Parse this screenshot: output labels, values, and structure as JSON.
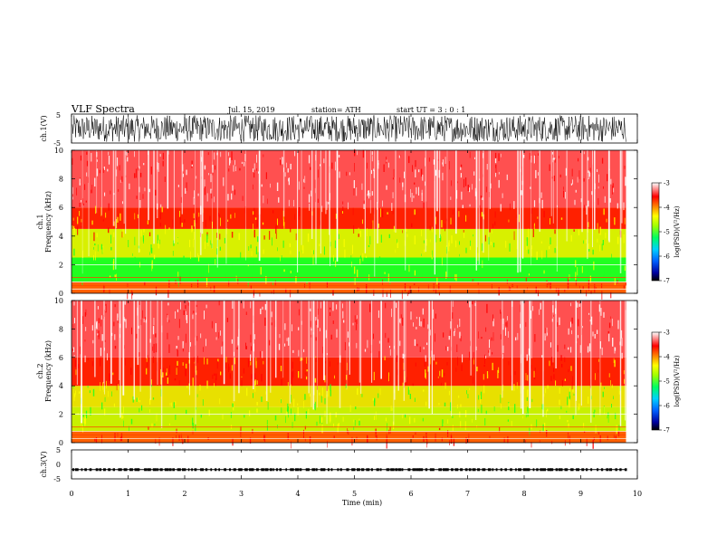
{
  "header": {
    "title": "VLF  Spectra",
    "date": "Jul.  15, 2019",
    "station": "station= ATH",
    "start": "start  UT  =    3  : 0   : 1"
  },
  "chart_data": [
    {
      "type": "line",
      "id": "ch1-waveform",
      "ylabel": "ch.1(V)",
      "ylim": [
        -5,
        5
      ],
      "yticks": [
        "5",
        "-5"
      ],
      "xlim": [
        0,
        10
      ],
      "color": "#000000",
      "note": "dense waveform roughly spanning -4.5 to +4.5 V"
    },
    {
      "type": "heatmap",
      "id": "ch1-spectrogram",
      "ylabel_line1": "ch.1",
      "ylabel_line2": "Frequency  (kHz)",
      "ylim": [
        0,
        10
      ],
      "yticks": [
        "0",
        "2",
        "4",
        "6",
        "8",
        "10"
      ],
      "xlim": [
        0,
        9.8
      ],
      "colorbar": {
        "label": "log(PSD)(V²/Hz)",
        "range": [
          -7,
          -3
        ],
        "ticks": [
          "-3",
          "-4",
          "-5",
          "-6",
          "-7"
        ],
        "colors": [
          "#000000",
          "#0000d0",
          "#00c0ff",
          "#00ff40",
          "#ffff00",
          "#ff0000",
          "#ffffff"
        ]
      },
      "bands": [
        {
          "freq_max": 0.8,
          "color": "#ff6000"
        },
        {
          "freq_max": 2.5,
          "color": "#20ff20"
        },
        {
          "freq_max": 4.5,
          "color": "#d8f000"
        },
        {
          "freq_max": 6.0,
          "color": "#ff2000"
        },
        {
          "freq_max": 10.0,
          "color": "#ff5050"
        }
      ]
    },
    {
      "type": "heatmap",
      "id": "ch2-spectrogram",
      "ylabel_line1": "ch.2",
      "ylabel_line2": "Frequency  (kHz)",
      "ylim": [
        0,
        10
      ],
      "yticks": [
        "0",
        "2",
        "4",
        "6",
        "8",
        "10"
      ],
      "xlim": [
        0,
        9.8
      ],
      "colorbar": {
        "label": "log(PSD)(V²/Hz)",
        "range": [
          -7,
          -3
        ],
        "ticks": [
          "-3",
          "-4",
          "-5",
          "-6",
          "-7"
        ]
      },
      "bands": [
        {
          "freq_max": 0.8,
          "color": "#ff6000"
        },
        {
          "freq_max": 2.5,
          "color": "#c8f000"
        },
        {
          "freq_max": 4.0,
          "color": "#e8e000"
        },
        {
          "freq_max": 6.0,
          "color": "#ff2000"
        },
        {
          "freq_max": 10.0,
          "color": "#ff5050"
        }
      ]
    },
    {
      "type": "line",
      "id": "ch3-signal",
      "ylabel": "ch.3(V)",
      "ylim": [
        -5,
        5
      ],
      "yticks": [
        "5",
        "0",
        "-5"
      ],
      "xlim": [
        0,
        9.8
      ],
      "level": -1.8,
      "color": "#000000"
    }
  ],
  "x_axis": {
    "label": "Time  (min)",
    "ticks": [
      "0",
      "1",
      "2",
      "3",
      "4",
      "5",
      "6",
      "7",
      "8",
      "9",
      "10"
    ],
    "range": [
      0,
      10
    ]
  }
}
